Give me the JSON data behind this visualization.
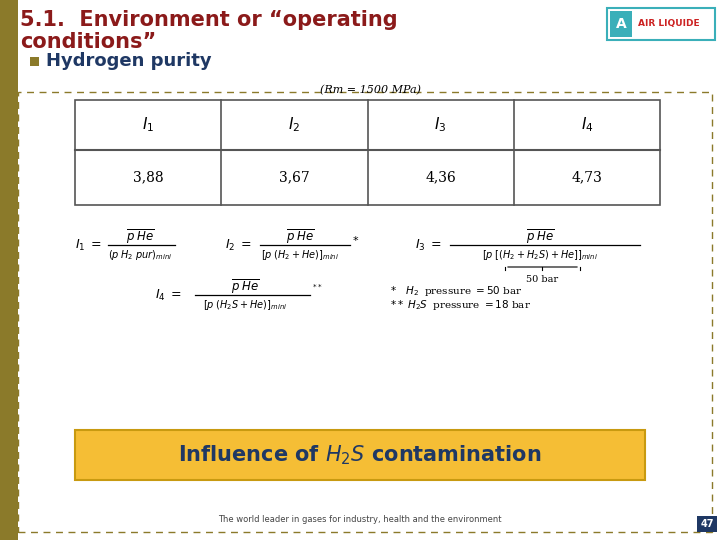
{
  "title_line1": "5.1.  Environment or “operating",
  "title_line2": "conditions”",
  "title_color": "#8B1A1A",
  "bg_color": "#FFFFFF",
  "left_bar_color": "#8B7A2A",
  "bullet_color": "#8B7A2A",
  "bullet_text": "Hydrogen purity",
  "bullet_text_color": "#1F3864",
  "table_caption": "(Rm = 1500 MPa)",
  "table_headers": [
    "I",
    "I",
    "I",
    "I"
  ],
  "table_subscripts": [
    "1",
    "2",
    "3",
    "4"
  ],
  "table_values": [
    "3,88",
    "3,67",
    "4,36",
    "4,73"
  ],
  "bottom_box_color": "#F5BE35",
  "bottom_box_text_color": "#1F3864",
  "footer_text": "The world leader in gases for industry, health and the environment",
  "footer_box_color": "#1F3864",
  "footer_box_text": "47",
  "dashed_border_color": "#8B7A2A",
  "air_liquide_teal": "#3AAFB9",
  "title_fontsize": 15,
  "bullet_fontsize": 13
}
